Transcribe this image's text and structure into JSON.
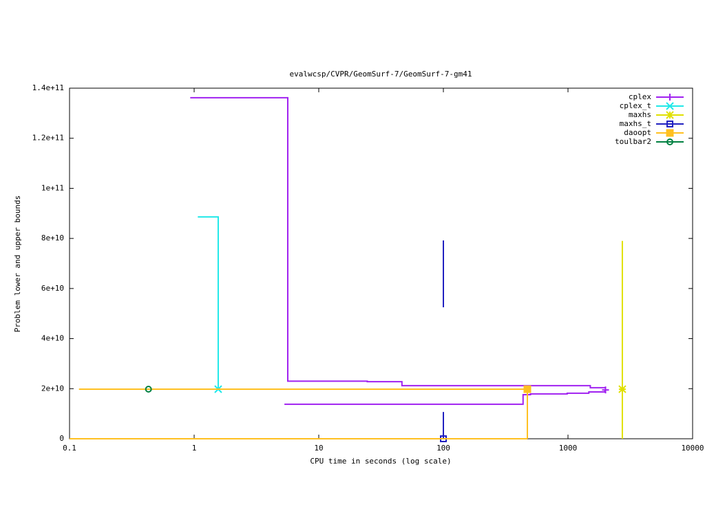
{
  "chart_data": {
    "type": "line",
    "steps": true,
    "title": "evalwcsp/CVPR/GeomSurf-7/GeomSurf-7-gm41",
    "x_label": "CPU time in seconds (log scale)",
    "y_label": "Problem lower and upper bounds",
    "xlog": true,
    "xlim": [
      0.1,
      10000
    ],
    "xticks": [
      0.1,
      1,
      10,
      100,
      1000,
      10000
    ],
    "ylim": [
      0,
      140000000000
    ],
    "yticks": [
      {
        "value": 0,
        "label": "0"
      },
      {
        "value": 20000000000,
        "label": "2e+10"
      },
      {
        "value": 40000000000,
        "label": "4e+10"
      },
      {
        "value": 60000000000,
        "label": "6e+10"
      },
      {
        "value": 80000000000,
        "label": "8e+10"
      },
      {
        "value": 100000000000,
        "label": "1e+11"
      },
      {
        "value": 120000000000,
        "label": "1.2e+11"
      },
      {
        "value": 140000000000,
        "label": "1.4e+11"
      }
    ],
    "legend": "top-right",
    "series": [
      {
        "name": "cplex",
        "color": "#a020f0",
        "marker": "plus",
        "x": [
          5.3,
          436,
          500,
          985,
          1470,
          1980,
          null,
          0.93,
          5.64,
          24.5,
          46.5,
          1510,
          2000
        ],
        "values": [
          13800000000,
          17600000000,
          17900000000,
          18200000000,
          18700000000,
          19500000000,
          null,
          136200000000,
          23000000000,
          22800000000,
          21200000000,
          20400000000,
          19500000000
        ]
      },
      {
        "name": "cplex_t",
        "color": "#20e8e8",
        "marker": "cross",
        "x": [
          1.07,
          1.56
        ],
        "values": [
          88600000000,
          19800000000
        ]
      },
      {
        "name": "maxhs",
        "color": "#e0e000",
        "marker": "star",
        "x": [
          2730,
          2730,
          null,
          2730
        ],
        "values": [
          79000000000,
          0,
          null,
          19800000000
        ]
      },
      {
        "name": "maxhs_t",
        "color": "#2020c0",
        "marker": "open-square",
        "x": [
          100,
          100,
          null,
          100,
          100
        ],
        "values": [
          79200000000,
          52500000000,
          null,
          10700000000,
          0
        ]
      },
      {
        "name": "daoopt",
        "color": "#ffc020",
        "marker": "square",
        "x": [
          0.1,
          472,
          null,
          472,
          472,
          null,
          0.119,
          472
        ],
        "values": [
          0,
          0,
          null,
          0,
          19800000000,
          null,
          19800000000,
          19800000000
        ]
      },
      {
        "name": "toulbar2",
        "color": "#008040",
        "marker": "circle",
        "x": [
          0.43
        ],
        "values": [
          19800000000
        ]
      }
    ]
  }
}
